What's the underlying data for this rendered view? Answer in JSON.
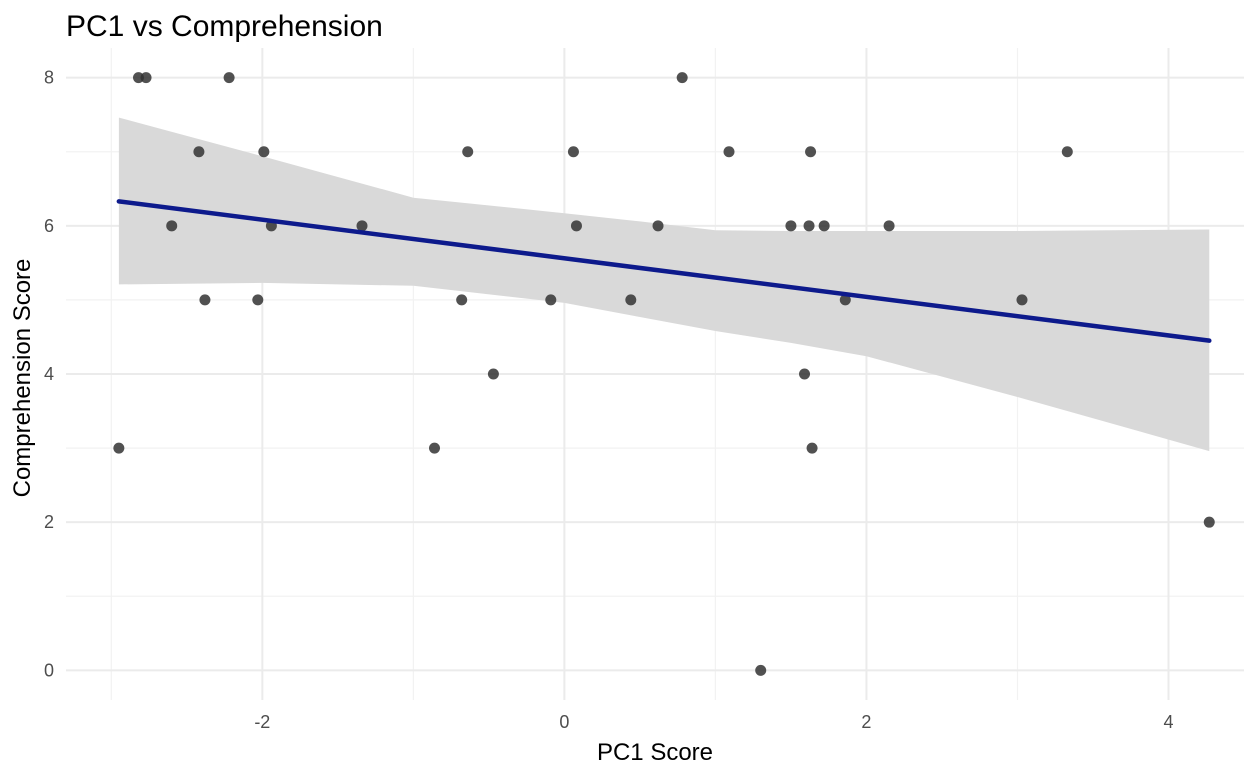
{
  "chart_data": {
    "type": "scatter",
    "title": "PC1 vs Comprehension",
    "xlabel": "PC1 Score",
    "ylabel": "Comprehension Score",
    "xlim": [
      -3.3,
      4.5
    ],
    "ylim": [
      -0.4,
      8.4
    ],
    "x_ticks": [
      -2,
      0,
      2,
      4
    ],
    "x_tick_labels": [
      "-2",
      "0",
      "2",
      "4"
    ],
    "y_ticks": [
      0,
      2,
      4,
      6,
      8
    ],
    "y_tick_labels": [
      "0",
      "2",
      "4",
      "6",
      "8"
    ],
    "grid": true,
    "legend": "none",
    "point_color": "#333333",
    "line_color": "#0d1a8c",
    "band_color": "#d9d9d9",
    "points": [
      {
        "x": -2.95,
        "y": 3
      },
      {
        "x": -2.82,
        "y": 8
      },
      {
        "x": -2.77,
        "y": 8
      },
      {
        "x": -2.6,
        "y": 6
      },
      {
        "x": -2.42,
        "y": 7
      },
      {
        "x": -2.38,
        "y": 5
      },
      {
        "x": -2.22,
        "y": 8
      },
      {
        "x": -2.03,
        "y": 5
      },
      {
        "x": -1.99,
        "y": 7
      },
      {
        "x": -1.94,
        "y": 6
      },
      {
        "x": -1.34,
        "y": 6
      },
      {
        "x": -0.86,
        "y": 3
      },
      {
        "x": -0.68,
        "y": 5
      },
      {
        "x": -0.64,
        "y": 7
      },
      {
        "x": -0.47,
        "y": 4
      },
      {
        "x": -0.09,
        "y": 5
      },
      {
        "x": 0.06,
        "y": 7
      },
      {
        "x": 0.08,
        "y": 6
      },
      {
        "x": 0.44,
        "y": 5
      },
      {
        "x": 0.62,
        "y": 6
      },
      {
        "x": 0.78,
        "y": 8
      },
      {
        "x": 1.09,
        "y": 7
      },
      {
        "x": 1.3,
        "y": 0
      },
      {
        "x": 1.5,
        "y": 6
      },
      {
        "x": 1.59,
        "y": 4
      },
      {
        "x": 1.62,
        "y": 6
      },
      {
        "x": 1.63,
        "y": 7
      },
      {
        "x": 1.64,
        "y": 3
      },
      {
        "x": 1.72,
        "y": 6
      },
      {
        "x": 1.86,
        "y": 5
      },
      {
        "x": 2.15,
        "y": 6
      },
      {
        "x": 3.03,
        "y": 5
      },
      {
        "x": 3.33,
        "y": 7
      },
      {
        "x": 4.27,
        "y": 2
      }
    ],
    "fit": {
      "x": [
        -2.95,
        4.27
      ],
      "y": [
        6.33,
        4.45
      ]
    },
    "confidence_band": {
      "x": [
        -2.95,
        -2.0,
        -1.0,
        0.0,
        0.5,
        1.0,
        1.5,
        2.0,
        3.0,
        4.27
      ],
      "lower": [
        5.21,
        5.23,
        5.19,
        4.96,
        4.77,
        4.58,
        4.42,
        4.24,
        3.69,
        2.96
      ],
      "upper": [
        7.46,
        6.94,
        6.38,
        6.17,
        6.06,
        5.94,
        5.93,
        5.93,
        5.93,
        5.95
      ]
    }
  }
}
